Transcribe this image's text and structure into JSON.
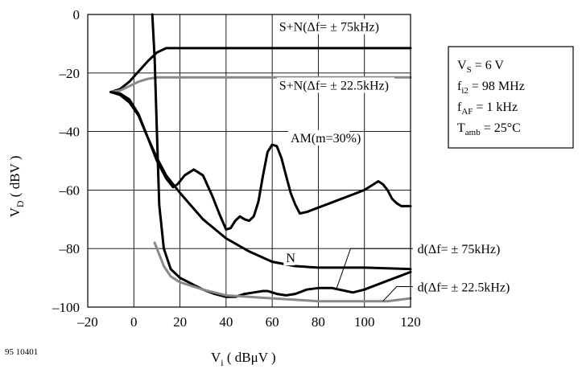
{
  "chart_data": {
    "type": "line",
    "figure_number": "95 10401",
    "xlabel": {
      "main": "V",
      "sub": "i",
      "rest": " ( dBμV )"
    },
    "ylabel": {
      "main": "V",
      "sub": "D",
      "rest": " ( dBV )"
    },
    "xlim": [
      -20,
      120
    ],
    "ylim": [
      -100,
      0
    ],
    "xticks": [
      -20,
      0,
      20,
      40,
      60,
      80,
      100,
      120
    ],
    "yticks": [
      0,
      -20,
      -40,
      -60,
      -80,
      -100
    ],
    "xtick_labels": [
      "–20",
      "0",
      "20",
      "40",
      "60",
      "80",
      "100",
      "120"
    ],
    "ytick_labels": [
      "0",
      "–20",
      "–40",
      "–60",
      "–80",
      "–100"
    ],
    "grid": true,
    "conditions": [
      {
        "main": "V",
        "sub": "S",
        "rest": " = 6 V"
      },
      {
        "main": "f",
        "sub": "i2",
        "rest": " = 98 MHz"
      },
      {
        "main": "f",
        "sub": "AF",
        "rest": " = 1 kHz"
      },
      {
        "main": "T",
        "sub": "amb",
        "rest": " = 25°C"
      }
    ],
    "series": [
      {
        "name": "S+N(Δf= ± 75kHz)",
        "color": "#000000",
        "points": [
          [
            -10,
            -26.5
          ],
          [
            -6,
            -25.5
          ],
          [
            -2,
            -23
          ],
          [
            2,
            -19.5
          ],
          [
            6,
            -16
          ],
          [
            10,
            -13
          ],
          [
            14,
            -11.5
          ],
          [
            20,
            -11.5
          ],
          [
            40,
            -11.5
          ],
          [
            60,
            -11.5
          ],
          [
            80,
            -11.5
          ],
          [
            100,
            -11.5
          ],
          [
            120,
            -11.5
          ]
        ]
      },
      {
        "name": "S+N(Δf= ± 22.5kHz)",
        "color": "#888888",
        "points": [
          [
            -10,
            -26.5
          ],
          [
            -6,
            -26
          ],
          [
            -2,
            -24.5
          ],
          [
            2,
            -23
          ],
          [
            6,
            -22
          ],
          [
            10,
            -21.5
          ],
          [
            14,
            -21.5
          ],
          [
            40,
            -21.5
          ],
          [
            80,
            -21.5
          ],
          [
            120,
            -21.5
          ]
        ]
      },
      {
        "name": "AM(m=30%)",
        "color": "#000000",
        "points": [
          [
            -10,
            -26.5
          ],
          [
            -6,
            -27
          ],
          [
            -2,
            -29
          ],
          [
            2,
            -34
          ],
          [
            6,
            -42
          ],
          [
            10,
            -50
          ],
          [
            14,
            -56
          ],
          [
            17,
            -59
          ],
          [
            19,
            -58
          ],
          [
            22,
            -55
          ],
          [
            26,
            -53
          ],
          [
            30,
            -55
          ],
          [
            34,
            -62
          ],
          [
            37,
            -68
          ],
          [
            40,
            -73.5
          ],
          [
            42,
            -73
          ],
          [
            44,
            -70.5
          ],
          [
            46,
            -69
          ],
          [
            48,
            -70
          ],
          [
            50,
            -70.5
          ],
          [
            52,
            -69
          ],
          [
            54,
            -64
          ],
          [
            56,
            -55
          ],
          [
            58,
            -47
          ],
          [
            60,
            -44.5
          ],
          [
            62,
            -45
          ],
          [
            64,
            -49
          ],
          [
            66,
            -55
          ],
          [
            68,
            -61
          ],
          [
            70,
            -65
          ],
          [
            72,
            -68
          ],
          [
            75,
            -67.5
          ],
          [
            80,
            -66
          ],
          [
            85,
            -64.5
          ],
          [
            90,
            -63
          ],
          [
            95,
            -61.5
          ],
          [
            100,
            -60
          ],
          [
            104,
            -58
          ],
          [
            106,
            -57
          ],
          [
            108,
            -58
          ],
          [
            110,
            -60
          ],
          [
            112,
            -63
          ],
          [
            114,
            -64.5
          ],
          [
            116,
            -65.5
          ],
          [
            120,
            -65.5
          ]
        ]
      },
      {
        "name": "N",
        "color": "#000000",
        "points": [
          [
            -10,
            -26.5
          ],
          [
            -6,
            -27.5
          ],
          [
            -2,
            -30
          ],
          [
            2,
            -34.5
          ],
          [
            6,
            -42
          ],
          [
            10,
            -49
          ],
          [
            14,
            -55
          ],
          [
            20,
            -61
          ],
          [
            30,
            -70
          ],
          [
            40,
            -76.5
          ],
          [
            50,
            -81
          ],
          [
            60,
            -84.5
          ],
          [
            70,
            -86
          ],
          [
            80,
            -86.5
          ],
          [
            100,
            -86.5
          ],
          [
            120,
            -87
          ]
        ]
      },
      {
        "name": "d(Δf= ± 75kHz)",
        "color": "#000000",
        "points": [
          [
            8,
            0
          ],
          [
            9,
            -15
          ],
          [
            10,
            -40
          ],
          [
            11,
            -65
          ],
          [
            13,
            -80
          ],
          [
            16,
            -87
          ],
          [
            20,
            -90
          ],
          [
            25,
            -92
          ],
          [
            30,
            -94
          ],
          [
            35,
            -95.5
          ],
          [
            40,
            -96.5
          ],
          [
            44,
            -96.5
          ],
          [
            48,
            -95.5
          ],
          [
            52,
            -95
          ],
          [
            56,
            -94.5
          ],
          [
            58,
            -94.5
          ],
          [
            62,
            -95.5
          ],
          [
            66,
            -96
          ],
          [
            70,
            -95.5
          ],
          [
            75,
            -94
          ],
          [
            80,
            -93.5
          ],
          [
            86,
            -93.5
          ],
          [
            92,
            -94.5
          ],
          [
            95,
            -95
          ],
          [
            100,
            -94
          ],
          [
            105,
            -92.5
          ],
          [
            110,
            -91
          ],
          [
            115,
            -89.5
          ],
          [
            120,
            -88
          ]
        ]
      },
      {
        "name": "d(Δf= ± 22.5kHz)",
        "color": "#888888",
        "points": [
          [
            9,
            -78
          ],
          [
            11,
            -82
          ],
          [
            13,
            -86
          ],
          [
            16,
            -89.5
          ],
          [
            20,
            -91.5
          ],
          [
            30,
            -94
          ],
          [
            40,
            -96
          ],
          [
            50,
            -96.5
          ],
          [
            60,
            -97
          ],
          [
            70,
            -97.5
          ],
          [
            80,
            -98
          ],
          [
            90,
            -98
          ],
          [
            100,
            -98
          ],
          [
            110,
            -98
          ],
          [
            115,
            -97.5
          ],
          [
            120,
            -97
          ]
        ]
      }
    ],
    "annotations": [
      {
        "text": "S+N(Δf= ± 75kHz)",
        "x": 63,
        "y": -4
      },
      {
        "text": "S+N(Δf= ± 22.5kHz)",
        "x": 63,
        "y": -24
      },
      {
        "text": "AM(m=30%)",
        "x": 68,
        "y": -42
      },
      {
        "text": "N",
        "x": 66,
        "y": -83
      },
      {
        "text": "d(Δf= ± 75kHz)",
        "x": 123,
        "y": -80,
        "leader": [
          [
            121,
            -80
          ],
          [
            94,
            -80
          ],
          [
            88,
            -93.5
          ]
        ]
      },
      {
        "text": "d(Δf= ± 22.5kHz)",
        "x": 123,
        "y": -93,
        "leader": [
          [
            121,
            -93
          ],
          [
            114,
            -93
          ],
          [
            108,
            -98
          ]
        ]
      }
    ]
  }
}
